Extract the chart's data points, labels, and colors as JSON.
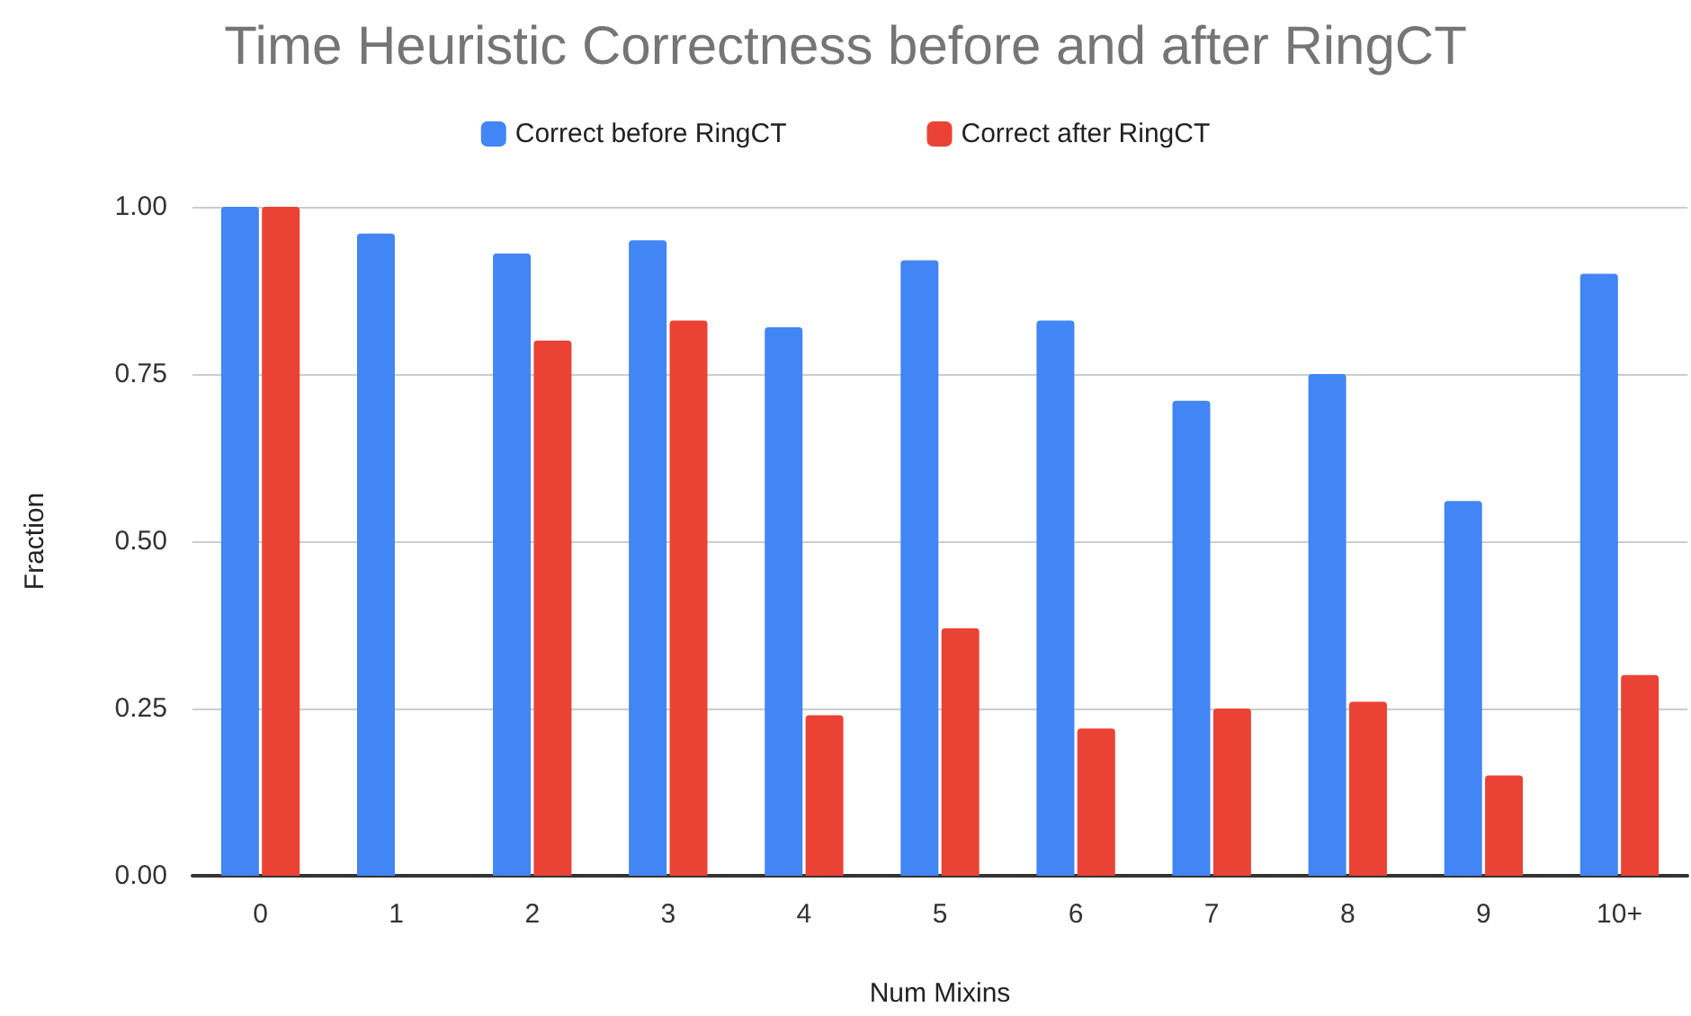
{
  "chart_data": {
    "type": "bar",
    "title": "Time Heuristic Correctness before and after RingCT",
    "xlabel": "Num Mixins",
    "ylabel": "Fraction",
    "categories": [
      "0",
      "1",
      "2",
      "3",
      "4",
      "5",
      "6",
      "7",
      "8",
      "9",
      "10+"
    ],
    "series": [
      {
        "name": "Correct before RingCT",
        "color": "#4285f4",
        "values": [
          1.0,
          0.96,
          0.93,
          0.95,
          0.82,
          0.92,
          0.83,
          0.71,
          0.75,
          0.56,
          0.9
        ]
      },
      {
        "name": "Correct after RingCT",
        "color": "#ea4335",
        "values": [
          1.0,
          0,
          0.8,
          0.83,
          0.24,
          0.37,
          0.22,
          0.25,
          0.26,
          0.15,
          0.3
        ]
      }
    ],
    "ylim": [
      0,
      1
    ],
    "yticks": [
      {
        "value": 0,
        "label": "0.00"
      },
      {
        "value": 0.25,
        "label": "0.25"
      },
      {
        "value": 0.5,
        "label": "0.50"
      },
      {
        "value": 0.75,
        "label": "0.75"
      },
      {
        "value": 1,
        "label": "1.00"
      }
    ],
    "grid": "y",
    "legend": "top"
  }
}
